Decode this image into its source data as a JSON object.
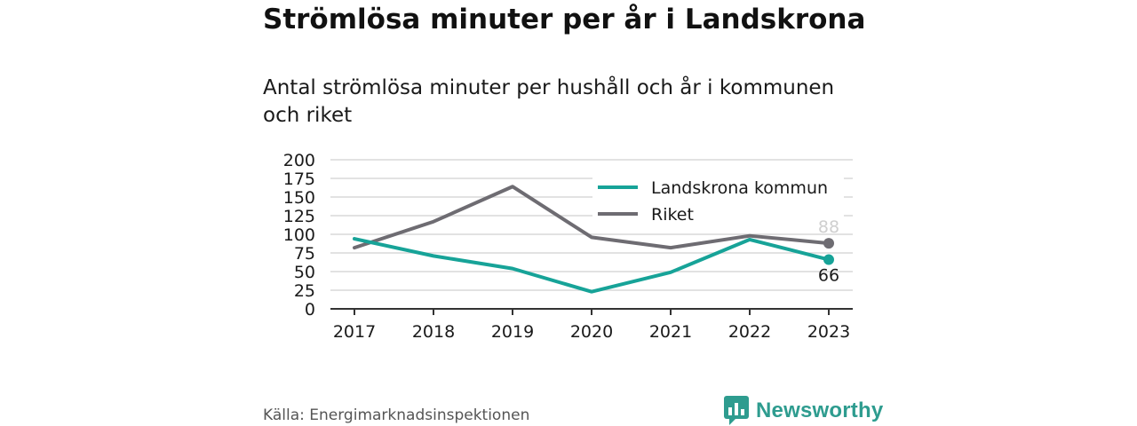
{
  "header": {
    "title": "Strömlösa minuter per år i Landskrona",
    "subtitle": "Antal strömlösa minuter per hushåll och år i kommunen och riket"
  },
  "footer": {
    "source": "Källa: Energimarknadsinspektionen",
    "brand": "Newsworthy",
    "logo_icon": "bar-chart-speech-bubble-icon",
    "brand_color": "#2e9c8f"
  },
  "chart_data": {
    "type": "line",
    "title": "Strömlösa minuter per år i Landskrona",
    "subtitle": "Antal strömlösa minuter per hushåll och år i kommunen och riket",
    "categories": [
      "2017",
      "2018",
      "2019",
      "2020",
      "2021",
      "2022",
      "2023"
    ],
    "ylim": [
      0,
      200
    ],
    "yticks": [
      0,
      25,
      50,
      75,
      100,
      125,
      150,
      175,
      200
    ],
    "grid": true,
    "legend_position": "top-right",
    "series": [
      {
        "name": "Landskrona kommun",
        "color": "#17a398",
        "values": [
          94,
          71,
          54,
          23,
          49,
          93,
          66
        ],
        "end_label": "66"
      },
      {
        "name": "Riket",
        "color": "#6e6c72",
        "values": [
          82,
          117,
          164,
          96,
          82,
          98,
          88
        ],
        "end_label": "88"
      }
    ]
  }
}
